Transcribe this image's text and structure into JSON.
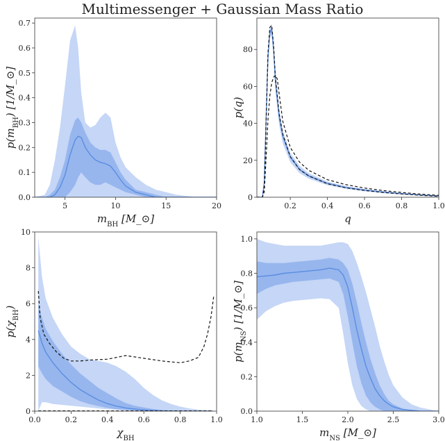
{
  "title": "Multimessenger + Gaussian Mass Ratio",
  "colors": {
    "outer": "#c5d6f6",
    "inner": "#97b6ee",
    "median": "#5a8de0",
    "dashed": "#111111",
    "axis": "#333333"
  },
  "chart_data": [
    {
      "type": "area",
      "xlabel": "m_BH [M_⊙]",
      "ylabel": "p(m_BH) [1/M_⊙]",
      "xlim": [
        2,
        20
      ],
      "ylim": [
        0,
        0.72
      ],
      "xticks": [
        "5",
        "10",
        "15",
        "20"
      ],
      "xtick_values": [
        5,
        10,
        15,
        20
      ],
      "yticks": [
        "0.0",
        "0.1",
        "0.2",
        "0.3",
        "0.4",
        "0.5",
        "0.6",
        "0.7"
      ],
      "ytick_values": [
        0,
        0.1,
        0.2,
        0.3,
        0.4,
        0.5,
        0.6,
        0.7
      ],
      "x": [
        2,
        3,
        3.5,
        4,
        4.5,
        5,
        5.5,
        6,
        6.3,
        6.6,
        7,
        7.5,
        8,
        8.5,
        9,
        9.5,
        10,
        10.5,
        11,
        12,
        13,
        14,
        15,
        16,
        18,
        20
      ],
      "outer_low": [
        0,
        0,
        0,
        0,
        0,
        0,
        0,
        0,
        0,
        0,
        0,
        0,
        0,
        0,
        0,
        0,
        0,
        0,
        0,
        0,
        0,
        0,
        0,
        0,
        0,
        0
      ],
      "outer_high": [
        0,
        0.01,
        0.05,
        0.15,
        0.28,
        0.45,
        0.63,
        0.69,
        0.6,
        0.42,
        0.3,
        0.28,
        0.29,
        0.32,
        0.34,
        0.32,
        0.22,
        0.16,
        0.12,
        0.08,
        0.05,
        0.03,
        0.02,
        0.01,
        0,
        0
      ],
      "inner_low": [
        0,
        0,
        0,
        0,
        0,
        0,
        0.02,
        0.05,
        0.08,
        0.1,
        0.08,
        0.06,
        0.05,
        0.05,
        0.06,
        0.05,
        0.04,
        0.03,
        0.02,
        0.01,
        0,
        0,
        0,
        0,
        0,
        0
      ],
      "inner_high": [
        0,
        0,
        0.01,
        0.03,
        0.08,
        0.15,
        0.25,
        0.31,
        0.32,
        0.3,
        0.26,
        0.22,
        0.2,
        0.19,
        0.19,
        0.18,
        0.14,
        0.1,
        0.07,
        0.03,
        0.02,
        0.01,
        0,
        0,
        0,
        0
      ],
      "median": [
        0,
        0,
        0,
        0.01,
        0.04,
        0.09,
        0.17,
        0.23,
        0.245,
        0.24,
        0.2,
        0.17,
        0.15,
        0.14,
        0.135,
        0.125,
        0.1,
        0.07,
        0.045,
        0.02,
        0.01,
        0,
        0,
        0,
        0,
        0
      ],
      "dashed": []
    },
    {
      "type": "line",
      "xlabel": "q",
      "ylabel": "p(q)",
      "xlim": [
        0.02,
        1.0
      ],
      "ylim": [
        0,
        97
      ],
      "xticks": [
        "0.2",
        "0.4",
        "0.6",
        "0.8",
        "1.0"
      ],
      "xtick_values": [
        0.2,
        0.4,
        0.6,
        0.8,
        1.0
      ],
      "yticks": [
        "0",
        "20",
        "40",
        "60",
        "80"
      ],
      "ytick_values": [
        0,
        20,
        40,
        60,
        80
      ],
      "x": [
        0.02,
        0.05,
        0.06,
        0.07,
        0.08,
        0.09,
        0.1,
        0.11,
        0.12,
        0.14,
        0.16,
        0.2,
        0.25,
        0.3,
        0.4,
        0.5,
        0.6,
        0.7,
        0.8,
        0.9,
        1.0
      ],
      "outer_low": [
        0,
        0,
        5,
        38,
        70,
        86,
        88,
        75,
        57,
        39,
        29,
        19,
        13,
        10,
        6.5,
        4.5,
        3.2,
        2.2,
        1.5,
        0.9,
        0.4
      ],
      "outer_high": [
        0,
        0,
        10,
        48,
        80,
        92,
        94,
        85,
        68,
        48,
        36,
        24,
        17,
        13,
        8.5,
        6,
        4.5,
        3.3,
        2.3,
        1.5,
        0.9
      ],
      "inner_low": [
        0,
        0,
        7,
        42,
        74,
        88,
        90,
        79,
        61,
        42,
        32,
        21,
        14.5,
        11,
        7.2,
        5,
        3.7,
        2.6,
        1.8,
        1.1,
        0.6
      ],
      "inner_high": [
        0,
        0,
        8.5,
        45,
        77,
        90,
        92,
        81,
        64,
        45,
        34,
        22.5,
        15.5,
        12,
        7.8,
        5.5,
        4.1,
        3,
        2.1,
        1.3,
        0.8
      ],
      "median": [
        0,
        0,
        8,
        44,
        76,
        89,
        91,
        80,
        63,
        44,
        33,
        22,
        15,
        11.5,
        7.5,
        5.3,
        3.9,
        2.8,
        1.9,
        1.2,
        0.7
      ],
      "dashed": [
        [
          0.02,
          0.05,
          0.06,
          0.07,
          0.08,
          0.09,
          0.1,
          0.11,
          0.12,
          0.14,
          0.16,
          0.2,
          0.25,
          0.3,
          0.4,
          0.5,
          0.6,
          0.7,
          0.8,
          0.9,
          1.0
        ],
        [
          0,
          0,
          6,
          42,
          78,
          92,
          93,
          82,
          65,
          45,
          34,
          22,
          15,
          11.5,
          7.3,
          5.1,
          3.7,
          2.6,
          1.8,
          1.1,
          0.5
        ]
      ],
      "dashed2": [
        [
          0.02,
          0.05,
          0.06,
          0.07,
          0.08,
          0.09,
          0.1,
          0.11,
          0.12,
          0.13,
          0.14,
          0.16,
          0.2,
          0.25,
          0.3,
          0.4,
          0.5,
          0.6,
          0.7,
          0.8,
          0.9,
          1.0
        ],
        [
          0,
          0,
          3,
          22,
          42,
          55,
          62,
          65,
          66,
          64,
          56,
          41,
          27,
          19,
          14.5,
          9.5,
          6.8,
          5,
          3.6,
          2.6,
          1.7,
          1.0
        ]
      ]
    },
    {
      "type": "area",
      "xlabel": "χ_BH",
      "ylabel": "p(χ_BH)",
      "xlim": [
        0,
        1.0
      ],
      "ylim": [
        0,
        10
      ],
      "xticks": [
        "0.0",
        "0.2",
        "0.4",
        "0.6",
        "0.8",
        "1.0"
      ],
      "xtick_values": [
        0,
        0.2,
        0.4,
        0.6,
        0.8,
        1.0
      ],
      "yticks": [
        "0",
        "2",
        "4",
        "6",
        "8",
        "10"
      ],
      "ytick_values": [
        0,
        2,
        4,
        6,
        8,
        10
      ],
      "x": [
        0.02,
        0.04,
        0.06,
        0.1,
        0.15,
        0.2,
        0.25,
        0.3,
        0.35,
        0.4,
        0.45,
        0.5,
        0.55,
        0.6,
        0.65,
        0.7,
        0.75,
        0.8,
        0.85,
        0.9,
        0.95,
        0.98
      ],
      "outer_low": [
        0,
        0.5,
        0.5,
        0.4,
        0.35,
        0.3,
        0.25,
        0.2,
        0.15,
        0.1,
        0.08,
        0.05,
        0.03,
        0.02,
        0.01,
        0,
        0,
        0,
        0,
        0,
        0,
        0
      ],
      "outer_high": [
        9.7,
        7.5,
        6.3,
        5.2,
        4.3,
        3.6,
        3.2,
        2.9,
        2.8,
        2.7,
        2.5,
        2.2,
        1.8,
        1.3,
        0.9,
        0.6,
        0.4,
        0.25,
        0.15,
        0.08,
        0.05,
        0.05
      ],
      "inner_low": [
        2.5,
        2.1,
        1.8,
        1.4,
        1.1,
        0.8,
        0.55,
        0.4,
        0.28,
        0.18,
        0.1,
        0.06,
        0.03,
        0.01,
        0,
        0,
        0,
        0,
        0,
        0,
        0,
        0
      ],
      "inner_high": [
        6,
        5.2,
        4.6,
        3.9,
        3.2,
        2.6,
        2.1,
        1.7,
        1.3,
        1.0,
        0.7,
        0.45,
        0.3,
        0.2,
        0.12,
        0.06,
        0.03,
        0.01,
        0,
        0,
        0,
        0
      ],
      "median": [
        4.5,
        3.8,
        3.3,
        2.7,
        2.1,
        1.6,
        1.2,
        0.9,
        0.62,
        0.42,
        0.28,
        0.18,
        0.12,
        0.07,
        0.04,
        0.02,
        0.01,
        0,
        0,
        0,
        0,
        0
      ],
      "dashed": [
        [
          0.02,
          0.03,
          0.05,
          0.08,
          0.12,
          0.16,
          0.2,
          0.25,
          0.3,
          0.4,
          0.5,
          0.6,
          0.7,
          0.8,
          0.85,
          0.9,
          0.93,
          0.95,
          0.97,
          0.985
        ],
        [
          6.7,
          5.2,
          4.3,
          3.8,
          3.3,
          2.95,
          2.8,
          2.8,
          2.85,
          2.9,
          3.1,
          2.95,
          2.8,
          2.7,
          2.8,
          3.0,
          3.6,
          4.3,
          5.3,
          6.5
        ]
      ]
    },
    {
      "type": "area",
      "xlabel": "m_NS [M_⊙]",
      "ylabel": "p(m_NS) [1/M_⊙]",
      "xlim": [
        1.0,
        3.0
      ],
      "ylim": [
        0,
        1.04
      ],
      "xticks": [
        "1.0",
        "1.5",
        "2.0",
        "2.5",
        "3.0"
      ],
      "xtick_values": [
        1.0,
        1.5,
        2.0,
        2.5,
        3.0
      ],
      "yticks": [
        "0.0",
        "0.2",
        "0.4",
        "0.6",
        "0.8",
        "1.0"
      ],
      "ytick_values": [
        0,
        0.2,
        0.4,
        0.6,
        0.8,
        1.0
      ],
      "x": [
        1.0,
        1.1,
        1.2,
        1.3,
        1.4,
        1.5,
        1.6,
        1.7,
        1.8,
        1.9,
        1.95,
        2.0,
        2.05,
        2.1,
        2.15,
        2.2,
        2.25,
        2.3,
        2.35,
        2.4,
        2.45,
        2.5,
        2.6,
        2.7,
        2.8,
        2.9,
        3.0
      ],
      "outer_low": [
        0.53,
        0.58,
        0.61,
        0.63,
        0.64,
        0.645,
        0.65,
        0.655,
        0.65,
        0.6,
        0.45,
        0.28,
        0.15,
        0.07,
        0.03,
        0.01,
        0,
        0,
        0,
        0,
        0,
        0,
        0,
        0,
        0,
        0,
        0
      ],
      "outer_high": [
        1.0,
        0.98,
        0.97,
        0.96,
        0.96,
        0.96,
        0.96,
        0.96,
        0.97,
        0.98,
        0.98,
        0.97,
        0.93,
        0.86,
        0.78,
        0.69,
        0.59,
        0.49,
        0.38,
        0.29,
        0.21,
        0.15,
        0.08,
        0.04,
        0.02,
        0.01,
        0
      ],
      "inner_low": [
        0.68,
        0.71,
        0.73,
        0.74,
        0.75,
        0.755,
        0.76,
        0.765,
        0.77,
        0.75,
        0.68,
        0.55,
        0.4,
        0.26,
        0.16,
        0.09,
        0.05,
        0.025,
        0.01,
        0,
        0,
        0,
        0,
        0,
        0,
        0,
        0
      ],
      "inner_high": [
        0.87,
        0.86,
        0.86,
        0.86,
        0.865,
        0.87,
        0.875,
        0.88,
        0.89,
        0.88,
        0.86,
        0.82,
        0.74,
        0.63,
        0.51,
        0.4,
        0.3,
        0.22,
        0.15,
        0.1,
        0.06,
        0.04,
        0.015,
        0.005,
        0,
        0,
        0
      ],
      "median": [
        0.78,
        0.785,
        0.79,
        0.8,
        0.805,
        0.81,
        0.815,
        0.82,
        0.83,
        0.82,
        0.79,
        0.72,
        0.6,
        0.47,
        0.36,
        0.26,
        0.19,
        0.13,
        0.09,
        0.06,
        0.04,
        0.025,
        0.01,
        0.005,
        0,
        0,
        0
      ],
      "dashed": []
    }
  ]
}
